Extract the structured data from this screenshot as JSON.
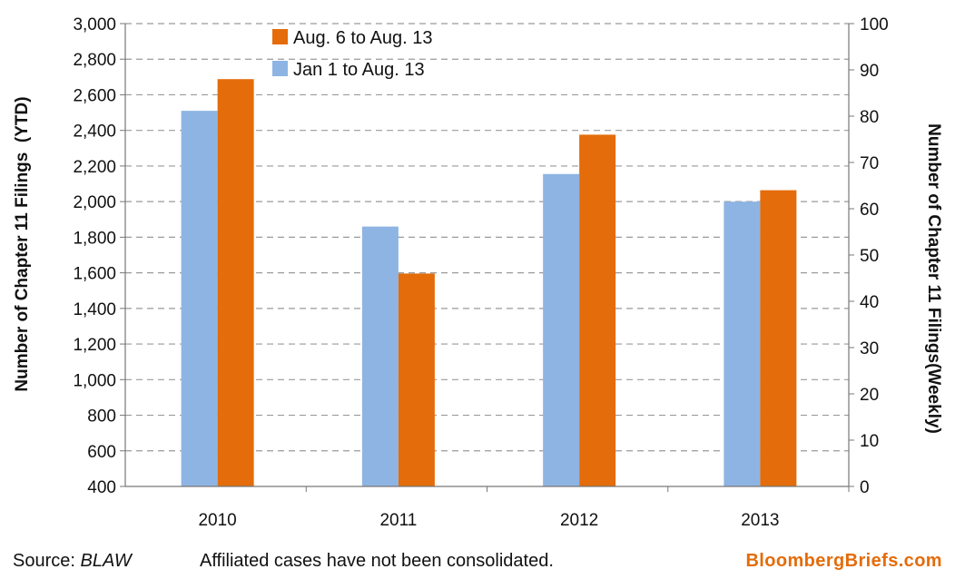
{
  "chart_data": {
    "type": "bar",
    "categories": [
      "2010",
      "2011",
      "2012",
      "2013"
    ],
    "series": [
      {
        "name": "Jan 1 to Aug. 13",
        "axis": "left",
        "color": "#8EB4E3",
        "values": [
          2510,
          1860,
          2155,
          2000
        ]
      },
      {
        "name": "Aug. 6 to Aug. 13",
        "axis": "right",
        "color": "#E46C0A",
        "values": [
          88,
          46,
          76,
          64
        ]
      }
    ],
    "ylabel": "Number of Chapter 11 Filings  (YTD)",
    "y2label": "Number of Chapter 11 Filings(Weekly)",
    "ylim": [
      400,
      3000
    ],
    "ytick_step": 200,
    "y2lim": [
      0,
      100
    ],
    "y2tick_step": 10,
    "grid": true,
    "legend": [
      "Aug. 6 to Aug. 13",
      "Jan 1 to Aug. 13"
    ],
    "legend_position": "top-left"
  },
  "footer": {
    "source_prefix": "Source: ",
    "source_name": "BLAW",
    "note": "Affiliated cases have not been consolidated.",
    "brand": "BloombergBriefs.com",
    "brand_color": "#E46C0A"
  }
}
